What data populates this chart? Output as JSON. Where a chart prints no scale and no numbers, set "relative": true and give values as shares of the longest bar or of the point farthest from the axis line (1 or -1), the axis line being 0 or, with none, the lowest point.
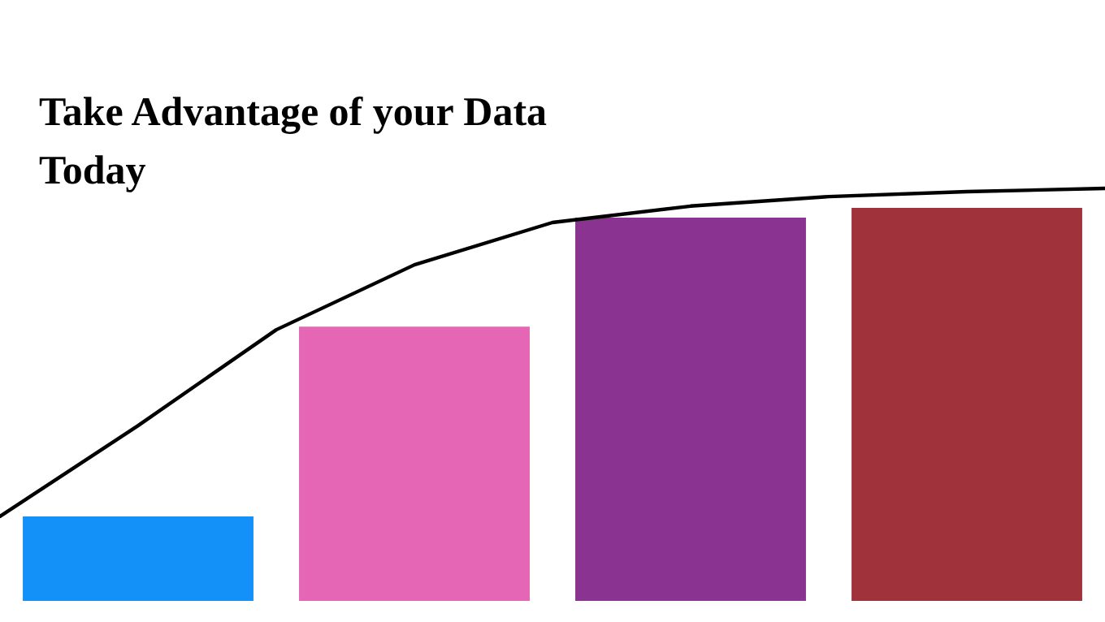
{
  "chart_data": [
    {
      "type": "bar",
      "title": "Take Advantage of your Data Today",
      "relative": true,
      "categories": [
        null,
        null,
        null,
        null
      ],
      "colors": [
        "#1491f9",
        "#e466b4",
        "#8a3390",
        "#a0323c"
      ],
      "values": [
        0.215,
        0.698,
        0.975,
        1
      ],
      "legend": false,
      "grid": false
    },
    {
      "type": "line",
      "relative": true,
      "categories": [
        null,
        null,
        null,
        null,
        null,
        null,
        null,
        null,
        null
      ],
      "color": "#000000",
      "values": [
        0,
        0.277,
        0.569,
        0.767,
        0.896,
        0.946,
        0.975,
        0.99,
        1
      ],
      "marker": "none",
      "legend": false,
      "grid": false
    }
  ]
}
